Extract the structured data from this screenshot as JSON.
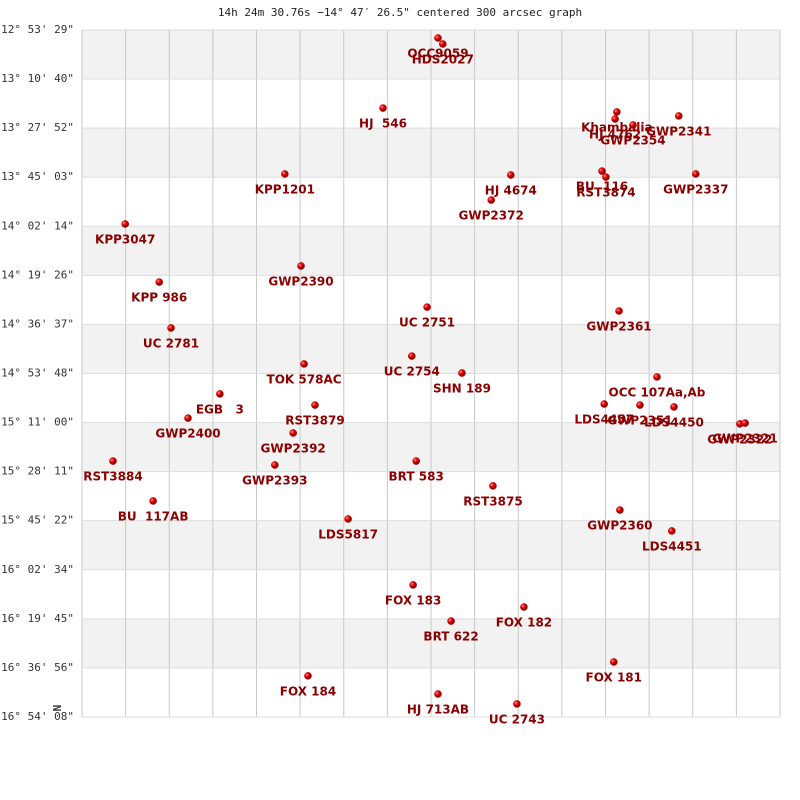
{
  "chart_data": {
    "type": "scatter",
    "title": "14h 24m 30.76s −14° 47′ 26.5\" centered 300 arcsec graph",
    "north_label": "N",
    "color": "#cc0000",
    "label_color": "#8b0000",
    "grid": true,
    "xlim": [
      0,
      16
    ],
    "xticks": [
      0,
      1,
      2,
      3,
      4,
      5,
      6,
      7,
      8,
      9,
      10,
      11,
      12,
      13,
      14,
      15,
      16
    ],
    "ylim": [
      -16.90222,
      -12.89139
    ],
    "yticks": [
      {
        "value": -12.89139,
        "label": "-12° 53' 29\""
      },
      {
        "value": -13.17778,
        "label": "-13° 10' 40\""
      },
      {
        "value": -13.46444,
        "label": "-13° 27' 52\""
      },
      {
        "value": -13.75083,
        "label": "-13° 45' 03\""
      },
      {
        "value": -14.03722,
        "label": "-14° 02' 14\""
      },
      {
        "value": -14.32389,
        "label": "-14° 19' 26\""
      },
      {
        "value": -14.61028,
        "label": "-14° 36' 37\""
      },
      {
        "value": -14.89667,
        "label": "-14° 53' 48\""
      },
      {
        "value": -15.18333,
        "label": "-15° 11' 00\""
      },
      {
        "value": -15.46972,
        "label": "-15° 28' 11\""
      },
      {
        "value": -15.75611,
        "label": "-15° 45' 22\""
      },
      {
        "value": -16.04278,
        "label": "-16° 02' 34\""
      },
      {
        "value": -16.32917,
        "label": "-16° 19' 45\""
      },
      {
        "value": -16.61556,
        "label": "-16° 36' 56\""
      },
      {
        "value": -16.90222,
        "label": "-16° 54' 08\""
      }
    ],
    "point_labels": [
      "OCC9059",
      "HDS2027",
      "HJ  546",
      "Khambalia",
      "HJ 4762",
      "GWP2354",
      "GWP2341",
      "KPP1201",
      "HJ 4674",
      "GWP2372",
      "BU  116",
      "RST3874",
      "GWP2337",
      "KPP3047",
      "GWP2390",
      "KPP 986",
      "UC 2781",
      "UC 2751",
      "GWP2361",
      "TOK 578AC",
      "UC 2754",
      "SHN 189",
      "OCC 107Aa,Ab",
      "EGB   3",
      "RST3879",
      "LDS4457",
      "GWP2351",
      "LDS4450",
      "GWP2400",
      "GWP2392",
      "GWP2322",
      "GWP2321",
      "RST3884",
      "BRT 583",
      "GWP2393",
      "RST3875",
      "BU  117AB",
      "GWP2360",
      "LDS5817",
      "LDS4451",
      "FOX 183",
      "FOX 182",
      "BRT 622",
      "FOX 181",
      "FOX 184",
      "HJ 713AB",
      "UC 2743"
    ],
    "x": [
      8.16,
      8.27,
      6.9,
      12.26,
      12.22,
      12.63,
      13.68,
      4.65,
      9.83,
      9.38,
      11.92,
      12.01,
      14.07,
      0.99,
      5.02,
      1.77,
      2.04,
      7.91,
      12.31,
      5.09,
      7.56,
      8.71,
      13.18,
      3.16,
      5.34,
      11.97,
      12.79,
      13.57,
      2.43,
      4.84,
      15.08,
      15.2,
      0.71,
      7.66,
      4.42,
      9.42,
      1.63,
      12.33,
      6.1,
      13.52,
      7.59,
      10.13,
      8.46,
      12.19,
      5.18,
      8.16,
      9.97
    ],
    "values": [
      -12.938,
      -12.973,
      -13.347,
      -13.37,
      -13.411,
      -13.446,
      -13.393,
      -13.732,
      -13.738,
      -13.884,
      -13.715,
      -13.75,
      -13.732,
      -14.024,
      -14.269,
      -14.363,
      -14.631,
      -14.509,
      -14.532,
      -14.841,
      -14.795,
      -14.894,
      -14.917,
      -15.016,
      -15.081,
      -15.075,
      -15.081,
      -15.092,
      -15.157,
      -15.244,
      -15.191,
      -15.186,
      -15.408,
      -15.408,
      -15.431,
      -15.553,
      -15.641,
      -15.694,
      -15.746,
      -15.816,
      -16.131,
      -16.26,
      -16.342,
      -16.581,
      -16.662,
      -16.768,
      -16.826
    ]
  }
}
